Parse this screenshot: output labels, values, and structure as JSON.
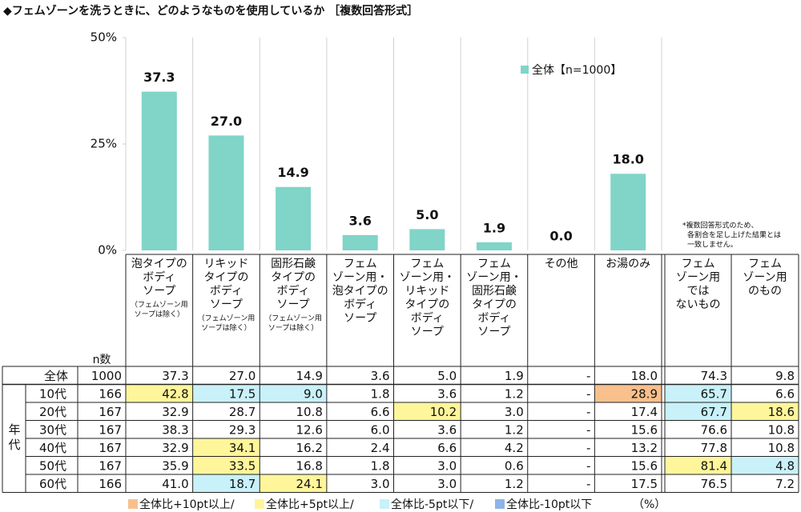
{
  "chart_data": {
    "type": "bar",
    "title": "◆フェムゾーンを洗うときに、どのようなものを使用しているか ［複数回答形式］",
    "categories": [
      [
        "泡タイプの",
        "ボディ",
        "ソープ"
      ],
      [
        "リキッド",
        "タイプの",
        "ボディ",
        "ソープ"
      ],
      [
        "固形石鹸",
        "タイプの",
        "ボディ",
        "ソープ"
      ],
      [
        "フェム",
        "ゾーン用・",
        "泡タイプの",
        "ボディ",
        "ソープ"
      ],
      [
        "フェム",
        "ゾーン用・",
        "リキッド",
        "タイプの",
        "ボディ",
        "ソープ"
      ],
      [
        "フェム",
        "ゾーン用・",
        "固形石鹸",
        "タイプの",
        "ボディ",
        "ソープ"
      ],
      [
        "その他"
      ],
      [
        "お湯のみ"
      ]
    ],
    "category_notes": [
      [
        "（フェムゾーン用",
        "ソープは除く）"
      ],
      [
        "（フェムゾーン用",
        "ソープは除く）"
      ],
      [
        "（フェムゾーン用",
        "ソープは除く）"
      ],
      null,
      null,
      null,
      null,
      null
    ],
    "series": [
      {
        "name": "全体【n=1000】",
        "color": "#80d4c8",
        "values": [
          37.3,
          27.0,
          14.9,
          3.6,
          5.0,
          1.9,
          0.0,
          18.0
        ],
        "value_labels": [
          "37.3",
          "27.0",
          "14.9",
          "3.6",
          "5.0",
          "1.9",
          "0.0",
          "18.0"
        ]
      }
    ],
    "ylim": [
      0,
      50
    ],
    "yticks": [
      {
        "value": 0,
        "label": "0%"
      },
      {
        "value": 25,
        "label": "25%"
      },
      {
        "value": 50,
        "label": "50%"
      }
    ],
    "legend": "upper right",
    "note": [
      "*複数回答形式のため、",
      "各割合を足し上げた結果とは",
      "一致しません。"
    ]
  },
  "table": {
    "n_label": "n数",
    "group_label": "年代",
    "columns": [
      [
        "フェム",
        "ゾーン用",
        "では",
        "ないもの"
      ],
      [
        "フェム",
        "ゾーン用",
        "のもの"
      ]
    ],
    "rows": [
      {
        "label": "全体",
        "n": "1000",
        "cells": [
          "37.3",
          "27.0",
          "14.9",
          "3.6",
          "5.0",
          "1.9",
          "-",
          "18.0",
          "74.3",
          "9.8"
        ],
        "highlight": [
          null,
          null,
          null,
          null,
          null,
          null,
          null,
          null,
          null,
          null
        ]
      },
      {
        "label": "10代",
        "n": "166",
        "cells": [
          "42.8",
          "17.5",
          "9.0",
          "1.8",
          "3.6",
          "1.2",
          "-",
          "28.9",
          "65.7",
          "6.6"
        ],
        "highlight": [
          1,
          2,
          2,
          null,
          null,
          null,
          null,
          0,
          2,
          null
        ]
      },
      {
        "label": "20代",
        "n": "167",
        "cells": [
          "32.9",
          "28.7",
          "10.8",
          "6.6",
          "10.2",
          "3.0",
          "-",
          "17.4",
          "67.7",
          "18.6"
        ],
        "highlight": [
          null,
          null,
          null,
          null,
          1,
          null,
          null,
          null,
          2,
          1
        ]
      },
      {
        "label": "30代",
        "n": "167",
        "cells": [
          "38.3",
          "29.3",
          "12.6",
          "6.0",
          "3.6",
          "1.2",
          "-",
          "15.6",
          "76.6",
          "10.8"
        ],
        "highlight": [
          null,
          null,
          null,
          null,
          null,
          null,
          null,
          null,
          null,
          null
        ]
      },
      {
        "label": "40代",
        "n": "167",
        "cells": [
          "32.9",
          "34.1",
          "16.2",
          "2.4",
          "6.6",
          "4.2",
          "-",
          "13.2",
          "77.8",
          "10.8"
        ],
        "highlight": [
          null,
          1,
          null,
          null,
          null,
          null,
          null,
          null,
          null,
          null
        ]
      },
      {
        "label": "50代",
        "n": "167",
        "cells": [
          "35.9",
          "33.5",
          "16.8",
          "1.8",
          "3.0",
          "0.6",
          "-",
          "15.6",
          "81.4",
          "4.8"
        ],
        "highlight": [
          null,
          1,
          null,
          null,
          null,
          null,
          null,
          null,
          1,
          2
        ]
      },
      {
        "label": "60代",
        "n": "166",
        "cells": [
          "41.0",
          "18.7",
          "24.1",
          "3.0",
          "3.0",
          "1.2",
          "-",
          "17.5",
          "76.5",
          "7.2"
        ],
        "highlight": [
          null,
          2,
          1,
          null,
          null,
          null,
          null,
          null,
          null,
          null
        ]
      }
    ],
    "legend": [
      {
        "label": "全体比+10pt以上/",
        "color": "#f8c08c"
      },
      {
        "label": "全体比+5pt以上/",
        "color": "#fff59a"
      },
      {
        "label": "全体比-5pt以下/",
        "color": "#c9f1f9"
      },
      {
        "label": "全体比-10pt以下",
        "color": "#8db4e8"
      }
    ],
    "unit": "（%）"
  }
}
